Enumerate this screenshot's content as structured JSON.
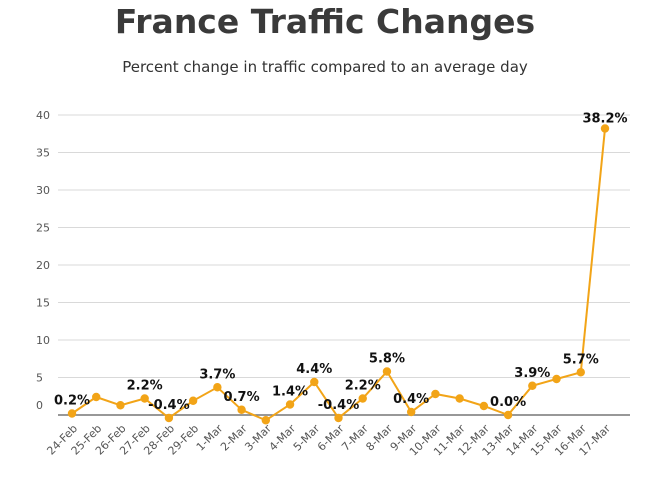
{
  "chart_data": {
    "type": "line",
    "title": "France Traffic Changes",
    "subtitle": "Percent change in traffic compared to an average day",
    "xlabel": "",
    "ylabel": "",
    "ylim": [
      -1,
      40
    ],
    "yticks": [
      0,
      5,
      10,
      15,
      20,
      25,
      30,
      35,
      40
    ],
    "grid": true,
    "legend": "none",
    "line_color": "#f2a417",
    "categories": [
      "24-Feb",
      "25-Feb",
      "26-Feb",
      "27-Feb",
      "28-Feb",
      "29-Feb",
      "1-Mar",
      "2-Mar",
      "3-Mar",
      "4-Mar",
      "5-Mar",
      "6-Mar",
      "7-Mar",
      "8-Mar",
      "9-Mar",
      "10-Mar",
      "11-Mar",
      "12-Mar",
      "13-Mar",
      "14-Mar",
      "15-Mar",
      "16-Mar",
      "17-Mar"
    ],
    "values": [
      0.2,
      2.4,
      1.3,
      2.2,
      -0.4,
      1.9,
      3.7,
      0.7,
      -0.7,
      1.4,
      4.4,
      -0.4,
      2.2,
      5.8,
      0.4,
      2.8,
      2.2,
      1.2,
      0.0,
      3.9,
      4.8,
      5.7,
      38.2
    ],
    "data_labels": [
      {
        "index": 0,
        "text": "0.2%"
      },
      {
        "index": 3,
        "text": "2.2%"
      },
      {
        "index": 4,
        "text": "-0.4%"
      },
      {
        "index": 6,
        "text": "3.7%"
      },
      {
        "index": 7,
        "text": "0.7%"
      },
      {
        "index": 9,
        "text": "1.4%"
      },
      {
        "index": 10,
        "text": "4.4%"
      },
      {
        "index": 11,
        "text": "-0.4%"
      },
      {
        "index": 12,
        "text": "2.2%"
      },
      {
        "index": 13,
        "text": "5.8%"
      },
      {
        "index": 14,
        "text": "0.4%"
      },
      {
        "index": 18,
        "text": "0.0%"
      },
      {
        "index": 19,
        "text": "3.9%"
      },
      {
        "index": 21,
        "text": "5.7%"
      },
      {
        "index": 22,
        "text": "38.2%"
      }
    ]
  }
}
